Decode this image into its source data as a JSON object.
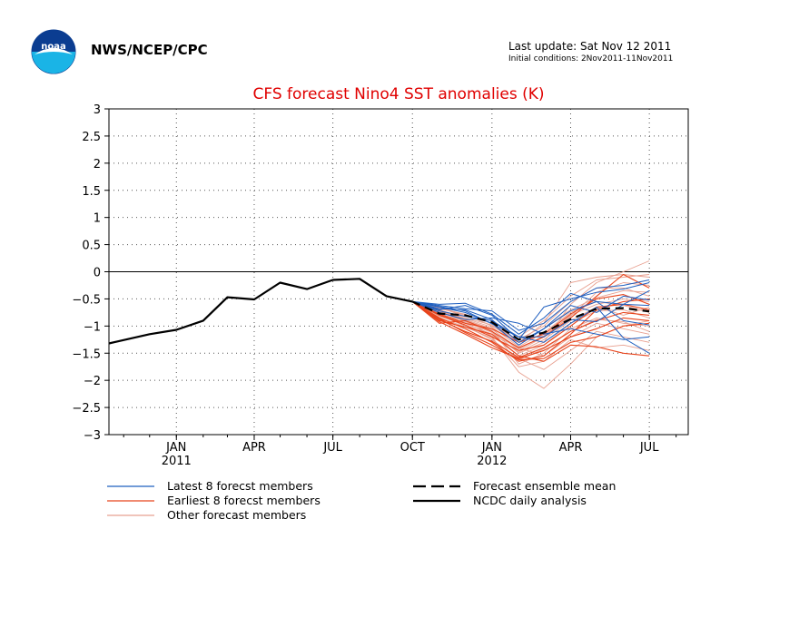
{
  "header": {
    "org": "NWS/NCEP/CPC",
    "last_update": "Last update: Sat Nov 12 2011",
    "initial_conditions": "Initial conditions: 2Nov2011-11Nov2011",
    "logo_text": "noaa"
  },
  "chart_data": {
    "type": "line",
    "title": "CFS forecast Nino4 SST anomalies (K)",
    "xlabel": "",
    "ylabel": "",
    "ylim": [
      -3,
      3
    ],
    "yticks": [
      3,
      2.5,
      2,
      1.5,
      1,
      0.5,
      0,
      -0.5,
      -1,
      -1.5,
      -2,
      -2.5,
      -3
    ],
    "ytick_labels": [
      "3",
      "2.5",
      "2",
      "1.5",
      "1",
      "0.5",
      "0",
      "−0.5",
      "−1",
      "−1.5",
      "−2",
      "−2.5",
      "−3"
    ],
    "xlim": [
      "2010-10-15",
      "2012-08-15"
    ],
    "xticks": [
      {
        "date": "2011-01-01",
        "label": "JAN",
        "year": "2011"
      },
      {
        "date": "2011-04-01",
        "label": "APR",
        "year": ""
      },
      {
        "date": "2011-07-01",
        "label": "JUL",
        "year": ""
      },
      {
        "date": "2011-10-01",
        "label": "OCT",
        "year": ""
      },
      {
        "date": "2012-01-01",
        "label": "JAN",
        "year": "2012"
      },
      {
        "date": "2012-04-01",
        "label": "APR",
        "year": ""
      },
      {
        "date": "2012-07-01",
        "label": "JUL",
        "year": ""
      }
    ],
    "grid": true,
    "zero_line": true,
    "legend": {
      "position": "bottom",
      "entries": [
        {
          "label": "Latest 8 forecst members",
          "color": "#1f5fbf",
          "style": "thin"
        },
        {
          "label": "Earliest 8 forecst members",
          "color": "#e8441c",
          "style": "thin"
        },
        {
          "label": "Other forecast members",
          "color": "#e8a090",
          "style": "thin"
        },
        {
          "label": "Forecast ensemble mean",
          "color": "#000000",
          "style": "dashed"
        },
        {
          "label": "NCDC daily analysis",
          "color": "#000000",
          "style": "solid"
        }
      ]
    },
    "series": [
      {
        "name": "NCDC daily analysis",
        "color": "#000000",
        "style": "solid",
        "points": [
          [
            "2010-10-15",
            -1.32
          ],
          [
            "2010-12-01",
            -1.15
          ],
          [
            "2011-01-01",
            -1.07
          ],
          [
            "2011-02-01",
            -0.9
          ],
          [
            "2011-03-01",
            -0.47
          ],
          [
            "2011-04-01",
            -0.51
          ],
          [
            "2011-05-01",
            -0.2
          ],
          [
            "2011-06-01",
            -0.32
          ],
          [
            "2011-07-01",
            -0.15
          ],
          [
            "2011-08-01",
            -0.13
          ],
          [
            "2011-09-01",
            -0.45
          ],
          [
            "2011-10-01",
            -0.55
          ]
        ]
      },
      {
        "name": "Forecast ensemble mean",
        "color": "#000000",
        "style": "dashed",
        "points": [
          [
            "2011-10-01",
            -0.55
          ],
          [
            "2011-11-01",
            -0.77
          ],
          [
            "2011-12-01",
            -0.8
          ],
          [
            "2012-01-01",
            -0.93
          ],
          [
            "2012-02-01",
            -1.25
          ],
          [
            "2012-03-01",
            -1.12
          ],
          [
            "2012-04-01",
            -0.87
          ],
          [
            "2012-05-01",
            -0.68
          ],
          [
            "2012-06-01",
            -0.67
          ],
          [
            "2012-07-01",
            -0.73
          ]
        ]
      }
    ],
    "member_dates": [
      "2011-10-01",
      "2011-11-01",
      "2011-12-01",
      "2012-01-01",
      "2012-02-01",
      "2012-03-01",
      "2012-04-01",
      "2012-05-01",
      "2012-06-01",
      "2012-07-01"
    ],
    "members": {
      "latest": [
        [
          -0.55,
          -0.62,
          -0.68,
          -0.72,
          -1.08,
          -0.95,
          -0.55,
          -0.3,
          -0.25,
          -0.15
        ],
        [
          -0.55,
          -0.7,
          -0.62,
          -0.8,
          -1.25,
          -0.65,
          -0.5,
          -0.38,
          -0.32,
          -0.2
        ],
        [
          -0.55,
          -0.65,
          -0.75,
          -0.95,
          -1.35,
          -1.05,
          -0.72,
          -0.55,
          -0.6,
          -0.62
        ],
        [
          -0.55,
          -0.72,
          -0.82,
          -0.9,
          -1.2,
          -1.3,
          -0.95,
          -0.65,
          -1.22,
          -1.5
        ],
        [
          -0.55,
          -0.6,
          -0.58,
          -0.78,
          -1.15,
          -0.85,
          -0.4,
          -0.55,
          -0.9,
          -0.98
        ],
        [
          -0.55,
          -0.68,
          -0.7,
          -0.88,
          -1.3,
          -1.05,
          -0.62,
          -0.75,
          -0.45,
          -0.52
        ],
        [
          -0.55,
          -0.75,
          -0.88,
          -0.85,
          -0.95,
          -1.15,
          -1.05,
          -1.15,
          -1.25,
          -1.2
        ],
        [
          -0.55,
          -0.64,
          -0.72,
          -0.96,
          -1.2,
          -1.2,
          -0.88,
          -0.92,
          -0.6,
          -0.35
        ]
      ],
      "earliest": [
        [
          -0.55,
          -0.85,
          -1.05,
          -1.3,
          -1.65,
          -1.55,
          -1.15,
          -0.7,
          -0.55,
          -0.5
        ],
        [
          -0.55,
          -0.92,
          -1.15,
          -1.4,
          -1.6,
          -1.45,
          -1.2,
          -1.05,
          -0.85,
          -0.9
        ],
        [
          -0.55,
          -0.8,
          -0.98,
          -1.2,
          -1.45,
          -1.35,
          -1.0,
          -0.65,
          -0.6,
          -0.7
        ],
        [
          -0.55,
          -0.9,
          -1.02,
          -1.15,
          -1.55,
          -1.65,
          -1.35,
          -1.38,
          -1.5,
          -1.55
        ],
        [
          -0.55,
          -0.95,
          -0.9,
          -1.1,
          -1.4,
          -1.2,
          -0.85,
          -0.45,
          -0.05,
          -0.3
        ],
        [
          -0.55,
          -0.88,
          -1.1,
          -1.28,
          -1.58,
          -1.4,
          -1.1,
          -0.9,
          -0.75,
          -0.8
        ],
        [
          -0.55,
          -0.78,
          -0.95,
          -1.05,
          -1.3,
          -1.15,
          -0.78,
          -0.5,
          -0.42,
          -0.6
        ],
        [
          -0.55,
          -0.86,
          -1.12,
          -1.35,
          -1.62,
          -1.6,
          -1.3,
          -1.2,
          -1.0,
          -0.95
        ]
      ],
      "other": [
        [
          -0.55,
          -0.7,
          -0.9,
          -1.1,
          -1.5,
          -1.3,
          -0.6,
          -0.2,
          0.0,
          0.2
        ],
        [
          -0.55,
          -0.75,
          -0.85,
          -1.2,
          -1.85,
          -2.15,
          -1.7,
          -1.2,
          -1.0,
          -0.9
        ],
        [
          -0.55,
          -0.65,
          -0.8,
          -0.95,
          -1.3,
          -0.95,
          -0.2,
          -0.1,
          -0.05,
          -0.1
        ],
        [
          -0.55,
          -0.8,
          -1.0,
          -1.25,
          -1.6,
          -1.8,
          -1.45,
          -1.1,
          -1.2,
          -1.3
        ],
        [
          -0.55,
          -0.72,
          -0.88,
          -1.05,
          -1.45,
          -1.2,
          -0.8,
          -0.6,
          -0.5,
          -0.55
        ],
        [
          -0.55,
          -0.68,
          -0.78,
          -1.0,
          -1.25,
          -1.0,
          -0.55,
          -0.3,
          -0.3,
          -0.45
        ],
        [
          -0.55,
          -0.82,
          -0.95,
          -1.15,
          -1.4,
          -1.55,
          -1.2,
          -0.95,
          -1.05,
          -1.15
        ],
        [
          -0.55,
          -0.78,
          -0.9,
          -1.08,
          -1.7,
          -1.5,
          -1.05,
          -0.85,
          -0.95,
          -1.0
        ],
        [
          -0.55,
          -0.7,
          -0.85,
          -0.98,
          -1.35,
          -1.05,
          -0.7,
          -0.48,
          -0.35,
          -0.38
        ],
        [
          -0.55,
          -0.76,
          -0.94,
          -1.18,
          -1.55,
          -1.35,
          -0.95,
          -0.72,
          -0.7,
          -0.85
        ],
        [
          -0.55,
          -0.66,
          -0.82,
          -0.9,
          -1.2,
          -0.9,
          -0.45,
          -0.15,
          -0.1,
          -0.05
        ],
        [
          -0.55,
          -0.84,
          -1.02,
          -1.22,
          -1.75,
          -1.65,
          -1.25,
          -1.4,
          -1.35,
          -1.45
        ],
        [
          -0.55,
          -0.72,
          -0.92,
          -1.12,
          -1.48,
          -1.25,
          -0.9,
          -0.65,
          -0.8,
          -0.65
        ],
        [
          -0.55,
          -0.7,
          -0.86,
          -1.02,
          -1.38,
          -1.12,
          -0.75,
          -0.55,
          -0.62,
          -0.75
        ],
        [
          -0.55,
          -0.8,
          -0.98,
          -1.25,
          -1.62,
          -1.42,
          -1.1,
          -0.88,
          -0.92,
          -1.1
        ],
        [
          -0.55,
          -0.74,
          -0.9,
          -1.06,
          -1.42,
          -1.18,
          -0.82,
          -0.38,
          -0.2,
          -0.25
        ]
      ]
    }
  }
}
